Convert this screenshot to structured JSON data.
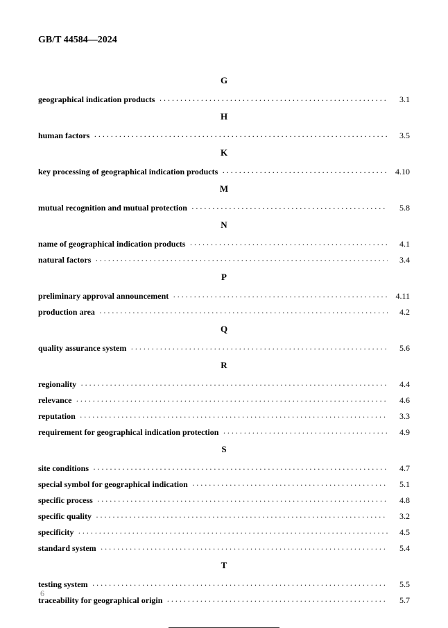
{
  "header": "GB/T 44584—2024",
  "page_number": "6",
  "sections": [
    {
      "letter": "G",
      "entries": [
        {
          "term": "geographical indication products",
          "ref": "3.1"
        }
      ]
    },
    {
      "letter": "H",
      "entries": [
        {
          "term": "human factors",
          "ref": "3.5"
        }
      ]
    },
    {
      "letter": "K",
      "entries": [
        {
          "term": "key processing of geographical indication products",
          "ref": "4.10"
        }
      ]
    },
    {
      "letter": "M",
      "entries": [
        {
          "term": "mutual recognition and mutual protection",
          "ref": "5.8"
        }
      ]
    },
    {
      "letter": "N",
      "entries": [
        {
          "term": "name of geographical indication products",
          "ref": "4.1"
        },
        {
          "term": "natural factors",
          "ref": "3.4"
        }
      ]
    },
    {
      "letter": "P",
      "entries": [
        {
          "term": "preliminary approval announcement",
          "ref": "4.11"
        },
        {
          "term": "production area",
          "ref": "4.2"
        }
      ]
    },
    {
      "letter": "Q",
      "entries": [
        {
          "term": "quality assurance system",
          "ref": "5.6"
        }
      ]
    },
    {
      "letter": "R",
      "entries": [
        {
          "term": "regionality",
          "ref": "4.4"
        },
        {
          "term": "relevance",
          "ref": "4.6"
        },
        {
          "term": "reputation",
          "ref": "3.3"
        },
        {
          "term": "requirement for geographical indication protection",
          "ref": "4.9"
        }
      ]
    },
    {
      "letter": "S",
      "entries": [
        {
          "term": "site conditions",
          "ref": "4.7"
        },
        {
          "term": "special symbol for geographical indication",
          "ref": "5.1"
        },
        {
          "term": "specific process",
          "ref": "4.8"
        },
        {
          "term": "specific quality",
          "ref": "3.2"
        },
        {
          "term": "specificity",
          "ref": "4.5"
        },
        {
          "term": "standard system",
          "ref": "5.4"
        }
      ]
    },
    {
      "letter": "T",
      "entries": [
        {
          "term": "testing system",
          "ref": "5.5"
        },
        {
          "term": "traceability for geographical origin",
          "ref": "5.7"
        }
      ]
    }
  ]
}
